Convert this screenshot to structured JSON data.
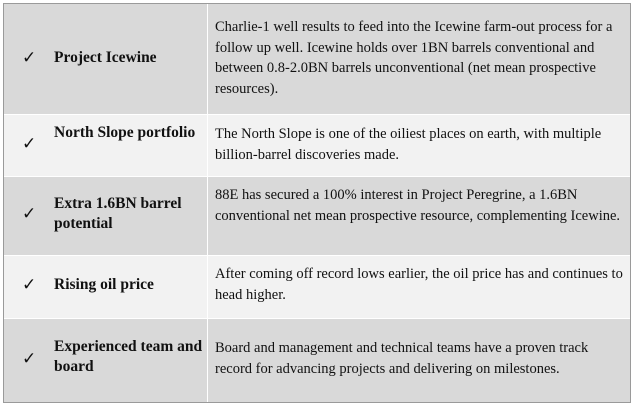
{
  "rows": [
    {
      "check": "✓",
      "title": "Project Icewine",
      "description": "Charlie-1 well results to feed into the Icewine farm-out process for a follow up well. Icewine holds over 1BN barrels conventional and between 0.8-2.0BN barrels unconventional (net mean prospective resources)."
    },
    {
      "check": "✓",
      "title": "North Slope portfolio",
      "description": "The North Slope is one of the oiliest places on earth, with multiple billion-barrel discoveries made."
    },
    {
      "check": "✓",
      "title": "Extra 1.6BN barrel potential",
      "description": "88E has secured a 100% interest in Project Peregrine, a 1.6BN conventional net mean prospective resource, complementing Icewine."
    },
    {
      "check": "✓",
      "title": "Rising oil price",
      "description": "After coming off record lows earlier, the oil price has and continues to head higher."
    },
    {
      "check": "✓",
      "title": "Experienced team and board",
      "description": "Board and management and technical teams have a proven track record for advancing projects and delivering on milestones."
    }
  ]
}
